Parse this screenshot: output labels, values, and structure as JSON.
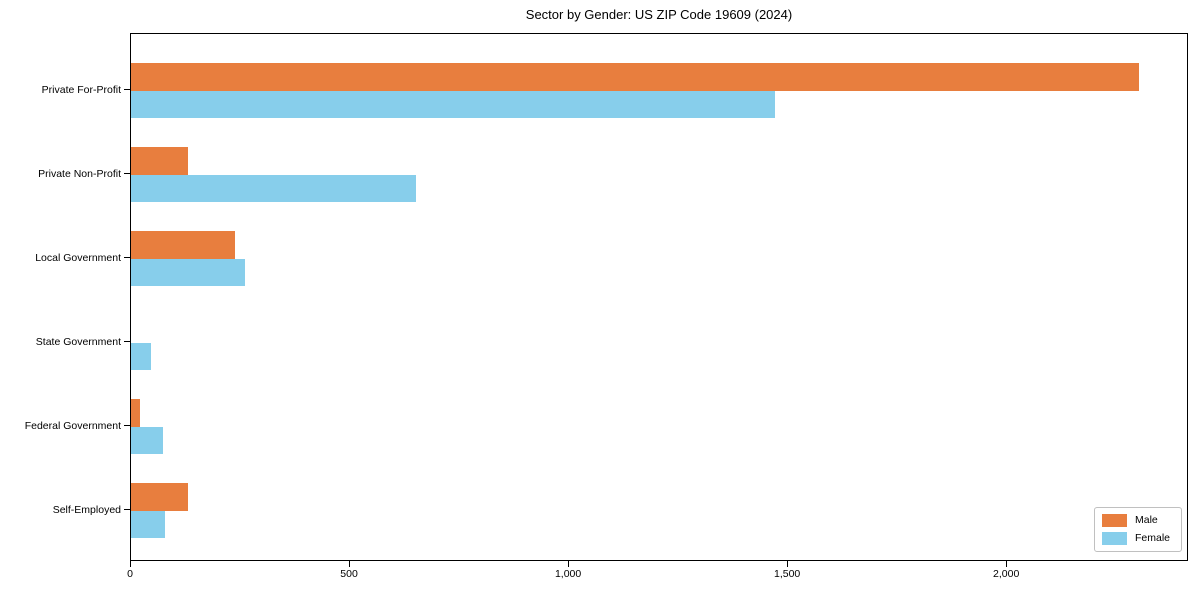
{
  "chart_data": {
    "type": "bar",
    "orientation": "horizontal",
    "title": "Sector by Gender: US ZIP Code 19609 (2024)",
    "categories": [
      "Private For-Profit",
      "Private Non-Profit",
      "Local Government",
      "State Government",
      "Federal Government",
      "Self-Employed"
    ],
    "series": [
      {
        "name": "Male",
        "color": "#e87e3e",
        "values": [
          2300,
          130,
          237,
          0,
          20,
          130
        ]
      },
      {
        "name": "Female",
        "color": "#87ceeb",
        "values": [
          1470,
          650,
          260,
          46,
          73,
          77
        ]
      }
    ],
    "xlabel": "",
    "ylabel": "",
    "xlim": [
      0,
      2415
    ],
    "x_ticks": [
      0,
      500,
      1000,
      1500,
      2000
    ],
    "x_tick_labels": [
      "0",
      "500",
      "1,000",
      "1,500",
      "2,000"
    ],
    "grid": false,
    "legend_position": "lower right",
    "background_color": "#ffffff",
    "text_color": "#000000"
  }
}
